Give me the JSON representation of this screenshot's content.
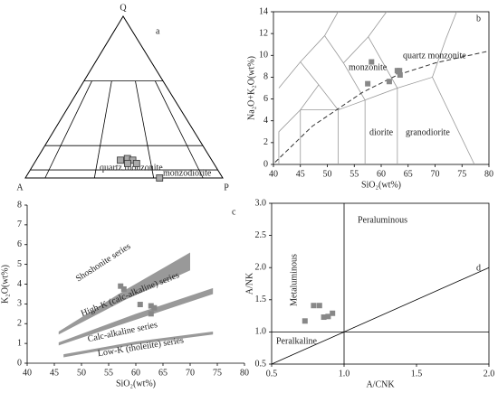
{
  "chart_data": [
    {
      "type": "ternary",
      "label": "a",
      "vertex_labels": [
        "Q",
        "A",
        "P"
      ],
      "boundaries": {
        "q": [
          5,
          20,
          60
        ],
        "p": [
          10,
          35,
          65,
          90
        ]
      },
      "field_labels": [
        "quartz monzonite",
        "monzodiorite"
      ],
      "points": {
        "p": [
          48,
          52,
          55,
          57,
          52,
          68
        ],
        "q": [
          11,
          12,
          11,
          9,
          9,
          0
        ]
      },
      "color": "#aaaaaa"
    },
    {
      "type": "scatter",
      "label": "b",
      "xlabel": "SiO₂(wt%)",
      "ylabel": "Na₂O+K₂O(wt%)",
      "xlim": [
        40,
        80
      ],
      "ylim": [
        0,
        14
      ],
      "xticks": [
        40,
        45,
        50,
        55,
        60,
        65,
        70,
        75,
        80
      ],
      "yticks": [
        0,
        2,
        4,
        6,
        8,
        10,
        12,
        14
      ],
      "x": [
        58.2,
        57.5,
        61.5,
        63,
        63.2,
        63.5,
        63.4
      ],
      "y": [
        9.4,
        7.4,
        7.6,
        8.6,
        8.5,
        8.2,
        8.6
      ],
      "color": "#888888",
      "fields": [
        {
          "x": [
            45,
            45,
            52,
            52
          ],
          "y": [
            0,
            5,
            5,
            0
          ]
        },
        {
          "x": [
            52,
            57,
            57
          ],
          "y": [
            5,
            5.9,
            0
          ]
        },
        {
          "x": [
            57,
            63,
            63
          ],
          "y": [
            5.9,
            7,
            0
          ]
        },
        {
          "x": [
            63,
            69.5,
            77.3
          ],
          "y": [
            7,
            8,
            0
          ]
        },
        {
          "x": [
            69.5,
            72,
            74
          ],
          "y": [
            8,
            11.5,
            14
          ]
        },
        {
          "x": [
            41,
            41,
            45,
            48.4,
            52
          ],
          "y": [
            0,
            3,
            5,
            7.3,
            5
          ]
        },
        {
          "x": [
            48.4,
            45,
            41
          ],
          "y": [
            7.3,
            9.4,
            7
          ]
        },
        {
          "x": [
            57,
            53,
            49.5,
            45
          ],
          "y": [
            5.9,
            9.3,
            11.8,
            9.4
          ]
        },
        {
          "x": [
            63,
            57.6,
            53
          ],
          "y": [
            7,
            11.7,
            9.3
          ]
        },
        {
          "x": [
            57.6,
            61
          ],
          "y": [
            11.7,
            14
          ]
        },
        {
          "x": [
            49.5,
            52
          ],
          "y": [
            11.8,
            14
          ]
        }
      ],
      "boundary": {
        "x": [
          40.3,
          47.2,
          56.5,
          63,
          70,
          80
        ],
        "y": [
          0.2,
          3.5,
          6.6,
          8.2,
          9.3,
          10.4
        ]
      },
      "field_labels": [
        "monzonite",
        "quartz monzonite",
        "diorite",
        "granodiorite"
      ]
    },
    {
      "type": "scatter",
      "label": "c",
      "xlabel": "SiO₂(wt%)",
      "ylabel": "K₂O(wt%)",
      "xlim": [
        40,
        80
      ],
      "ylim": [
        0,
        8
      ],
      "xticks": [
        40,
        45,
        50,
        55,
        60,
        65,
        70,
        75,
        80
      ],
      "yticks": [
        0,
        1,
        2,
        3,
        4,
        5,
        6,
        7,
        8
      ],
      "x": [
        57.2,
        57.8,
        60.8,
        62.8,
        62.8,
        63.4
      ],
      "y": [
        3.9,
        3.75,
        2.97,
        2.9,
        2.5,
        2.8
      ],
      "color": "#888888",
      "bands": [
        {
          "x": [
            45.8,
            58,
            70,
            70,
            58,
            45.8
          ],
          "y": [
            1.6,
            3.7,
            5.6,
            4.7,
            3.2,
            1.45
          ]
        },
        {
          "x": [
            45.8,
            60,
            74.2,
            74.2,
            60,
            45.8
          ],
          "y": [
            1.05,
            2.5,
            3.8,
            3.5,
            2.2,
            0.9
          ]
        },
        {
          "x": [
            46.7,
            60,
            74.2,
            74.2,
            60,
            46.7
          ],
          "y": [
            0.45,
            1.1,
            1.6,
            1.45,
            0.95,
            0.3
          ]
        }
      ],
      "band_color": "#999999",
      "field_labels": [
        "Shoshonite series",
        "High-K (calc-alkaline) series",
        "Calc-alkaline series",
        "Low-K (tholeiite) series"
      ]
    },
    {
      "type": "scatter",
      "label": "d",
      "xlabel": "A/CNK",
      "ylabel": "A/NK",
      "xlim": [
        0.5,
        2.0
      ],
      "ylim": [
        0.5,
        3.0
      ],
      "xticks": [
        0.5,
        {
          "value": 1,
          "label": "1.0"
        },
        1.5,
        {
          "value": 2,
          "label": "2.0"
        }
      ],
      "yticks": [
        0.5,
        {
          "value": 1,
          "label": "1.0"
        },
        1.5,
        {
          "value": 2,
          "label": "2.0"
        },
        2.5,
        {
          "value": 3,
          "label": "3.0"
        }
      ],
      "x": [
        0.73,
        0.79,
        0.83,
        0.86,
        0.89,
        0.92
      ],
      "y": [
        1.17,
        1.41,
        1.41,
        1.23,
        1.24,
        1.29
      ],
      "color": "#888888",
      "fields": [
        {
          "x": [
            1,
            1
          ],
          "y": [
            0.5,
            3
          ]
        },
        {
          "x": [
            0.5,
            2
          ],
          "y": [
            1,
            1
          ]
        },
        {
          "x": [
            0.5,
            2
          ],
          "y": [
            0.5,
            2
          ]
        }
      ],
      "field_labels": [
        "Peraluminous",
        "Metaluminous",
        "Peralkaline"
      ]
    }
  ]
}
